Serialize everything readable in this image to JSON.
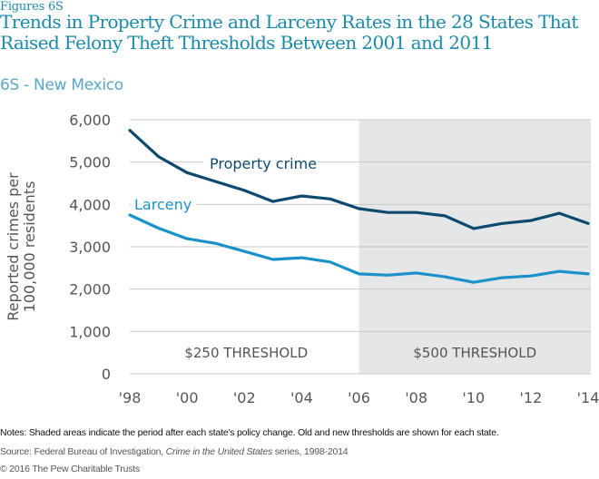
{
  "header": {
    "figure_label": "Figures 6S",
    "title": "Trends in Property Crime and Larceny Rates in the 28 States That Raised Felony Theft Thresholds Between 2001 and 2011",
    "subtitle": "6S - New Mexico"
  },
  "colors": {
    "title": "#1a8aaa",
    "subtitle": "#5aa6c6",
    "property_crime": "#0d4a6e",
    "larceny": "#1a91c8",
    "shade": "#e5e6e8",
    "grid": "#c8c8c8",
    "axis_text": "#555555"
  },
  "chart_data": {
    "type": "line",
    "title": "Trends in Property Crime and Larceny Rates in the 28 States That Raised Felony Theft Thresholds Between 2001 and 2011",
    "subtitle": "6S - New Mexico",
    "xlabel": "",
    "ylabel": "Reported crimes per 100,000 residents",
    "x": [
      1998,
      1999,
      2000,
      2001,
      2002,
      2003,
      2004,
      2005,
      2006,
      2007,
      2008,
      2009,
      2010,
      2011,
      2012,
      2013,
      2014
    ],
    "xlim": [
      1998,
      2014
    ],
    "ylim": [
      0,
      6000
    ],
    "xticks": [
      1998,
      2000,
      2002,
      2004,
      2006,
      2008,
      2010,
      2012,
      2014
    ],
    "xtick_labels": [
      "'98",
      "'00",
      "'02",
      "'04",
      "'06",
      "'08",
      "'10",
      "'12",
      "'14"
    ],
    "yticks": [
      0,
      1000,
      2000,
      3000,
      4000,
      5000,
      6000
    ],
    "ytick_labels": [
      "0",
      "1,000",
      "2,000",
      "3,000",
      "4,000",
      "5,000",
      "6,000"
    ],
    "grid": true,
    "series": [
      {
        "name": "Property crime",
        "values": [
          5750,
          5130,
          4750,
          4540,
          4330,
          4070,
          4200,
          4130,
          3900,
          3810,
          3810,
          3730,
          3430,
          3550,
          3620,
          3790,
          3550
        ]
      },
      {
        "name": "Larceny",
        "values": [
          3750,
          3440,
          3190,
          3080,
          2890,
          2700,
          2740,
          2640,
          2360,
          2330,
          2380,
          2290,
          2160,
          2270,
          2310,
          2420,
          2360
        ]
      }
    ],
    "shaded_region": {
      "from": 2006,
      "to": 2014,
      "meaning": "period after policy change"
    },
    "annotations": [
      {
        "text": "$250 THRESHOLD",
        "period": "before"
      },
      {
        "text": "$500 THRESHOLD",
        "period": "after"
      }
    ],
    "legend": "inline labels"
  },
  "footer": {
    "notes": "Notes: Shaded areas indicate the period after each state's policy change. Old and new thresholds are shown for each state.",
    "source_prefix": "Source: Federal Bureau of Investigation, ",
    "source_italic": "Crime in the United States",
    "source_suffix": " series, 1998-2014",
    "copyright": "© 2016 The Pew Charitable Trusts"
  }
}
